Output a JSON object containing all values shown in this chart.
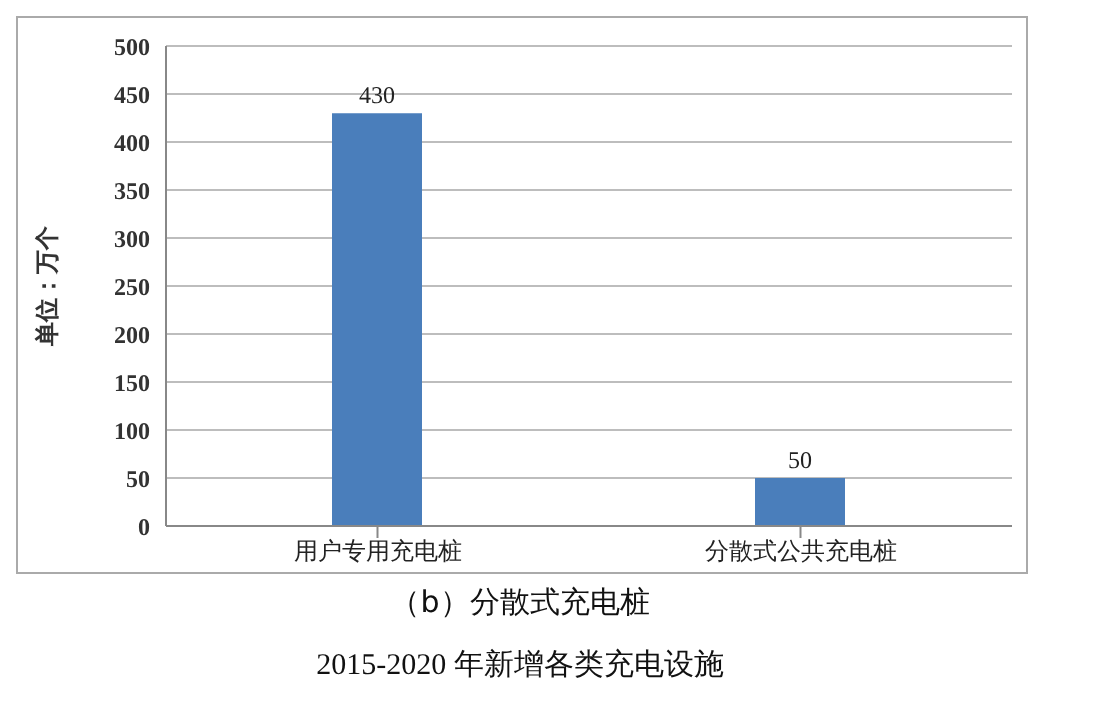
{
  "chart_data": {
    "type": "bar",
    "title": "（b）分散式充电桩",
    "annotations": [
      "2015-2020 年新增各类充电设施"
    ],
    "ylabel": "单位：万个",
    "categories": [
      "用户专用充电桩",
      "分散式公共充电桩"
    ],
    "values": [
      430,
      50
    ],
    "color": "#4a7ebb",
    "ylim": [
      0,
      500
    ],
    "yticks": [
      0,
      50,
      100,
      150,
      200,
      250,
      300,
      350,
      400,
      450,
      500
    ],
    "grid": "y",
    "data_labels": true
  }
}
